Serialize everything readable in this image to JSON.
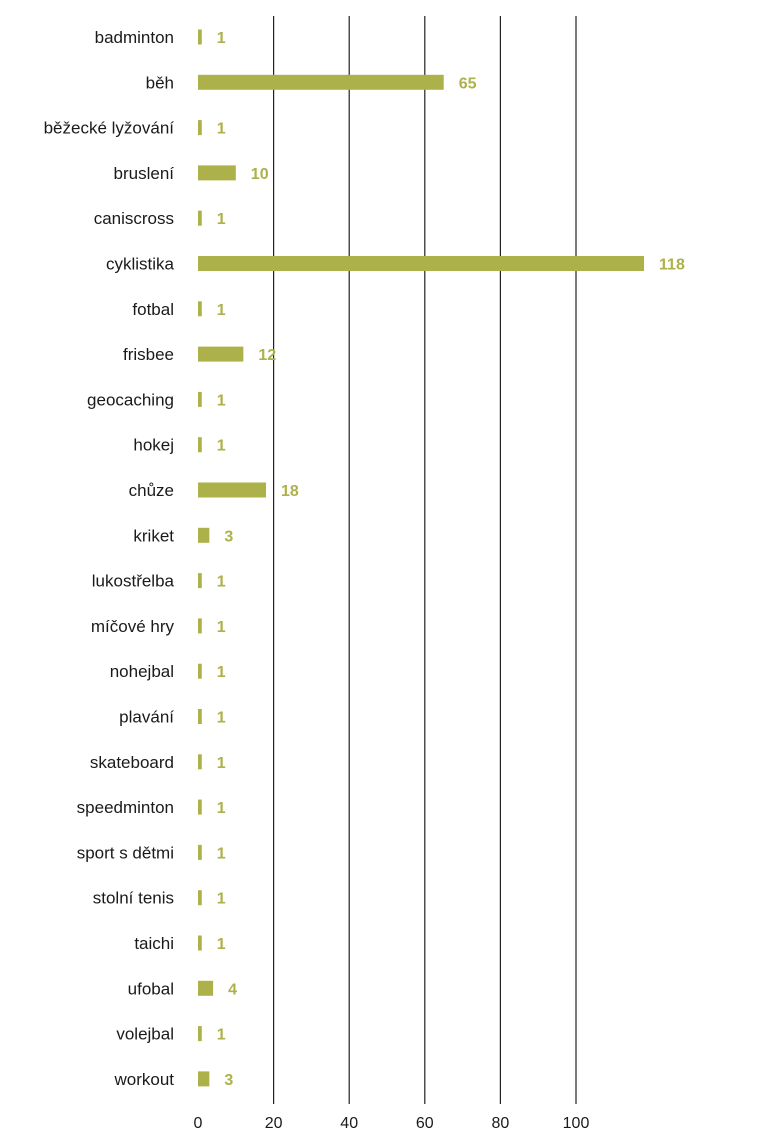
{
  "chart_data": {
    "type": "bar",
    "orientation": "horizontal",
    "categories": [
      "badminton",
      "běh",
      "běžecké lyžování",
      "bruslení",
      "caniscross",
      "cyklistika",
      "fotbal",
      "frisbee",
      "geocaching",
      "hokej",
      "chůze",
      "kriket",
      "lukostřelba",
      "míčové hry",
      "nohejbal",
      "plavání",
      "skateboard",
      "speedminton",
      "sport s dětmi",
      "stolní tenis",
      "taichi",
      "ufobal",
      "volejbal",
      "workout"
    ],
    "values": [
      1,
      65,
      1,
      10,
      1,
      118,
      1,
      12,
      1,
      1,
      18,
      3,
      1,
      1,
      1,
      1,
      1,
      1,
      1,
      1,
      1,
      4,
      1,
      3
    ],
    "xlim": [
      0,
      138
    ],
    "xticks": [
      0,
      20,
      40,
      60,
      80,
      100
    ],
    "grid": true,
    "legend": "none",
    "title": "",
    "xlabel": "",
    "ylabel": ""
  },
  "colors": {
    "bar": "#adb14a",
    "value_label": "#adb14a",
    "grid": "#222222",
    "text": "#1a1a1a"
  }
}
